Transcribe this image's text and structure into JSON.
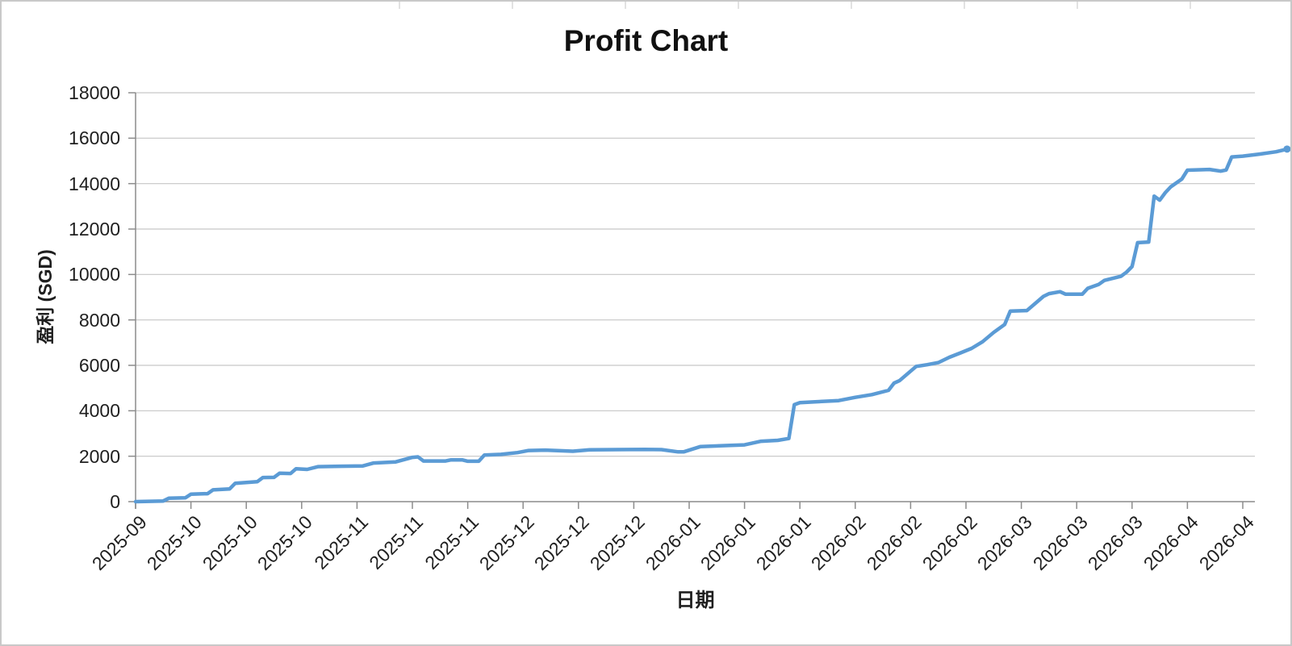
{
  "title": "Profit Chart",
  "colors": {
    "line": "#5B9BD5",
    "grid": "#c6c6c6",
    "axis": "#8c8c8c",
    "text": "#1f1f1f",
    "border": "#c9c9c9"
  },
  "chart_data": {
    "type": "line",
    "title": "Profit Chart",
    "xlabel": "日期",
    "ylabel": "盈利 (SGD)",
    "ylim": [
      0,
      18000
    ],
    "yticks": [
      0,
      2000,
      4000,
      6000,
      8000,
      10000,
      12000,
      14000,
      16000,
      18000
    ],
    "grid": "horizontal-only",
    "legend": "none",
    "xtick_interval_days": 10,
    "xtick_labels": [
      "2025-09",
      "2025-10",
      "2025-10",
      "2025-10",
      "2025-11",
      "2025-11",
      "2025-11",
      "2025-12",
      "2025-12",
      "2025-12",
      "2026-01",
      "2026-01",
      "2026-01",
      "2026-02",
      "2026-02",
      "2026-02",
      "2026-03",
      "2026-03",
      "2026-03",
      "2026-04",
      "2026-04"
    ],
    "series": [
      {
        "name": "盈利 (SGD)",
        "color": "#5B9BD5",
        "points_format": "[day_offset, profit_sgd]",
        "points": [
          [
            0,
            0
          ],
          [
            5,
            30
          ],
          [
            6,
            150
          ],
          [
            9,
            170
          ],
          [
            10,
            330
          ],
          [
            13,
            350
          ],
          [
            14,
            520
          ],
          [
            17,
            560
          ],
          [
            18,
            810
          ],
          [
            22,
            880
          ],
          [
            23,
            1060
          ],
          [
            25,
            1070
          ],
          [
            26,
            1250
          ],
          [
            28,
            1240
          ],
          [
            29,
            1450
          ],
          [
            31,
            1420
          ],
          [
            33,
            1540
          ],
          [
            37,
            1560
          ],
          [
            41,
            1570
          ],
          [
            43,
            1700
          ],
          [
            47,
            1750
          ],
          [
            50,
            1950
          ],
          [
            51,
            1970
          ],
          [
            52,
            1790
          ],
          [
            56,
            1790
          ],
          [
            57,
            1840
          ],
          [
            59,
            1840
          ],
          [
            60,
            1780
          ],
          [
            62,
            1780
          ],
          [
            63,
            2050
          ],
          [
            66,
            2080
          ],
          [
            69,
            2160
          ],
          [
            71,
            2250
          ],
          [
            74,
            2270
          ],
          [
            79,
            2220
          ],
          [
            82,
            2280
          ],
          [
            92,
            2300
          ],
          [
            95,
            2290
          ],
          [
            98,
            2190
          ],
          [
            99,
            2190
          ],
          [
            102,
            2420
          ],
          [
            107,
            2470
          ],
          [
            110,
            2500
          ],
          [
            113,
            2660
          ],
          [
            116,
            2700
          ],
          [
            118,
            2780
          ],
          [
            119,
            4270
          ],
          [
            120,
            4360
          ],
          [
            127,
            4450
          ],
          [
            130,
            4590
          ],
          [
            133,
            4710
          ],
          [
            136,
            4900
          ],
          [
            137,
            5215
          ],
          [
            138,
            5330
          ],
          [
            140,
            5745
          ],
          [
            141,
            5955
          ],
          [
            143,
            6030
          ],
          [
            145,
            6120
          ],
          [
            147,
            6355
          ],
          [
            149,
            6545
          ],
          [
            151,
            6745
          ],
          [
            153,
            7040
          ],
          [
            155,
            7450
          ],
          [
            157,
            7800
          ],
          [
            158,
            8390
          ],
          [
            161,
            8410
          ],
          [
            164,
            9035
          ],
          [
            165,
            9155
          ],
          [
            167,
            9240
          ],
          [
            168,
            9130
          ],
          [
            171,
            9130
          ],
          [
            172,
            9390
          ],
          [
            174,
            9565
          ],
          [
            175,
            9740
          ],
          [
            178,
            9920
          ],
          [
            179,
            10100
          ],
          [
            180,
            10350
          ],
          [
            181,
            11400
          ],
          [
            183,
            11430
          ],
          [
            184,
            13450
          ],
          [
            185,
            13270
          ],
          [
            186,
            13600
          ],
          [
            187,
            13860
          ],
          [
            189,
            14200
          ],
          [
            190,
            14590
          ],
          [
            194,
            14625
          ],
          [
            196,
            14550
          ],
          [
            197,
            14600
          ],
          [
            198,
            15175
          ],
          [
            200,
            15210
          ],
          [
            203,
            15300
          ],
          [
            206,
            15400
          ],
          [
            208,
            15520
          ]
        ]
      }
    ]
  }
}
